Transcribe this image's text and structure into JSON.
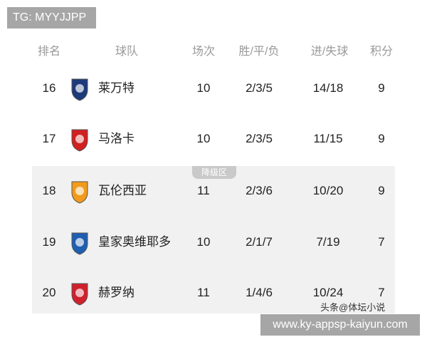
{
  "watermark_top": "TG: MYYJJPP",
  "watermark_bottom": "www.ky-appsp-kaiyun.com",
  "source_label": "头条@体坛小说",
  "headers": {
    "rank": "排名",
    "team": "球队",
    "played": "场次",
    "wdl": "胜/平/负",
    "goals": "进/失球",
    "points": "积分"
  },
  "relegation_label": "降级区",
  "rows": [
    {
      "rank": "16",
      "team": "莱万特",
      "played": "10",
      "wdl": "2/3/5",
      "goals": "14/18",
      "points": "9",
      "color": "#1d3a7a"
    },
    {
      "rank": "17",
      "team": "马洛卡",
      "played": "10",
      "wdl": "2/3/5",
      "goals": "11/15",
      "points": "9",
      "color": "#d21f1f"
    },
    {
      "rank": "18",
      "team": "瓦伦西亚",
      "played": "11",
      "wdl": "2/3/6",
      "goals": "10/20",
      "points": "9",
      "color": "#f29a1a"
    },
    {
      "rank": "19",
      "team": "皇家奥维耶多",
      "played": "10",
      "wdl": "2/1/7",
      "goals": "7/19",
      "points": "7",
      "color": "#1f5fb0"
    },
    {
      "rank": "20",
      "team": "赫罗纳",
      "played": "11",
      "wdl": "1/4/6",
      "goals": "10/24",
      "points": "7",
      "color": "#d0202c"
    }
  ]
}
